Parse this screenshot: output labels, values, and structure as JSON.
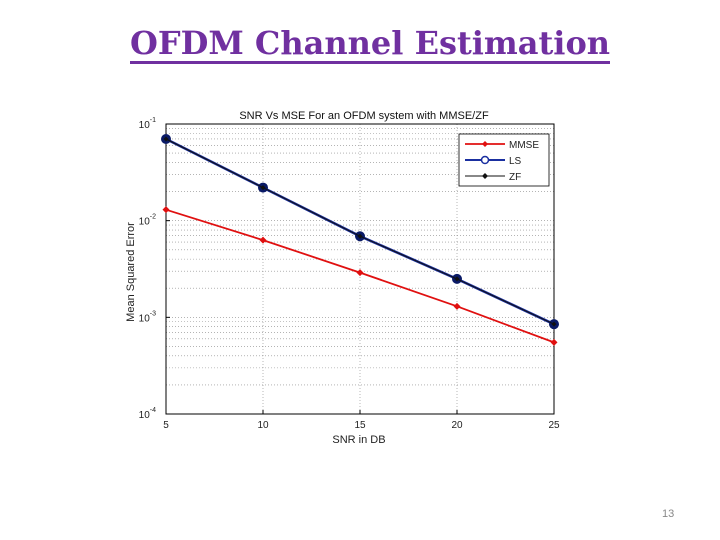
{
  "slide": {
    "title": "OFDM Channel Estimation",
    "page_number": "13"
  },
  "colors": {
    "title": "#7030a0",
    "mmse": "#e01010",
    "ls": "#1a2fa0",
    "zf": "#111111",
    "ls_marker": "#0a1a66"
  },
  "chart_data": {
    "type": "line",
    "title": "SNR Vs MSE For an OFDM system with MMSE/ZF",
    "xlabel": "SNR in DB",
    "ylabel": "Mean Squared Error",
    "x": [
      5,
      10,
      15,
      20,
      25
    ],
    "xlim": [
      5,
      25
    ],
    "ylim": [
      0.0001,
      0.1
    ],
    "yscale": "log",
    "x_ticks": [
      "5",
      "10",
      "15",
      "20",
      "25"
    ],
    "y_ticks": [
      {
        "base": "10",
        "exp": "-1",
        "value": 0.1
      },
      {
        "base": "10",
        "exp": "-2",
        "value": 0.01
      },
      {
        "base": "10",
        "exp": "-3",
        "value": 0.001
      },
      {
        "base": "10",
        "exp": "-4",
        "value": 0.0001
      }
    ],
    "grid": true,
    "legend_position": "top-right",
    "series": [
      {
        "name": "MMSE",
        "values": [
          0.013,
          0.0063,
          0.0029,
          0.0013,
          0.00055
        ],
        "marker": "diamond"
      },
      {
        "name": "LS",
        "values": [
          0.07,
          0.022,
          0.0069,
          0.0025,
          0.00085
        ],
        "marker": "circle"
      },
      {
        "name": "ZF",
        "values": [
          0.07,
          0.022,
          0.0069,
          0.0025,
          0.00085
        ],
        "marker": "diamond"
      }
    ]
  }
}
